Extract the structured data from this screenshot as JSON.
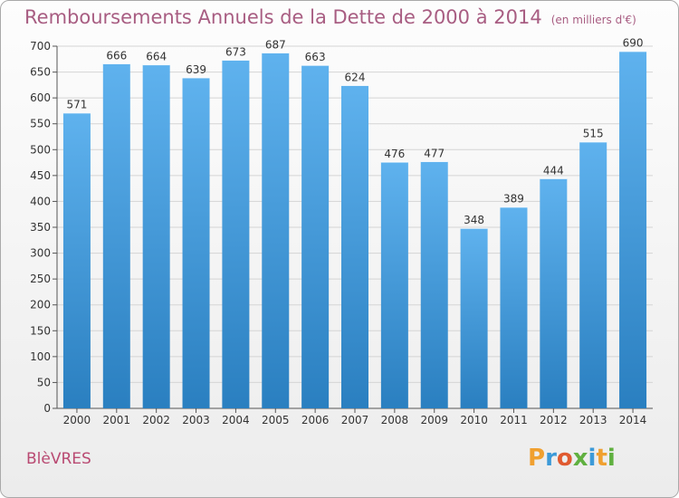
{
  "title": "Remboursements Annuels de la Dette de 2000 à 2014",
  "unit": "(en milliers d'€)",
  "commune": "BlèVRES",
  "brand": {
    "letters": [
      "P",
      "r",
      "o",
      "x",
      "i",
      "t",
      "i"
    ],
    "colors": [
      "#f0a030",
      "#3c9ad8",
      "#e05a30",
      "#60b040",
      "#3c9ad8",
      "#f0a030",
      "#60b040"
    ]
  },
  "colors": {
    "bar_light": "#5fb2ee",
    "bar_dark": "#2a7fc0",
    "title": "#a85d82",
    "commune": "#b94a72"
  },
  "chart_data": {
    "type": "bar",
    "title": "Remboursements Annuels de la Dette de 2000 à 2014",
    "subtitle": "(en milliers d'€)",
    "xlabel": "",
    "ylabel": "",
    "categories": [
      "2000",
      "2001",
      "2002",
      "2003",
      "2004",
      "2005",
      "2006",
      "2007",
      "2008",
      "2009",
      "2010",
      "2011",
      "2012",
      "2013",
      "2014"
    ],
    "values": [
      571,
      666,
      664,
      639,
      673,
      687,
      663,
      624,
      476,
      477,
      348,
      389,
      444,
      515,
      690
    ],
    "ylim": [
      0,
      700
    ],
    "yticks": [
      0,
      50,
      100,
      150,
      200,
      250,
      300,
      350,
      400,
      450,
      500,
      550,
      600,
      650,
      700
    ],
    "grid": true,
    "data_labels": true
  }
}
